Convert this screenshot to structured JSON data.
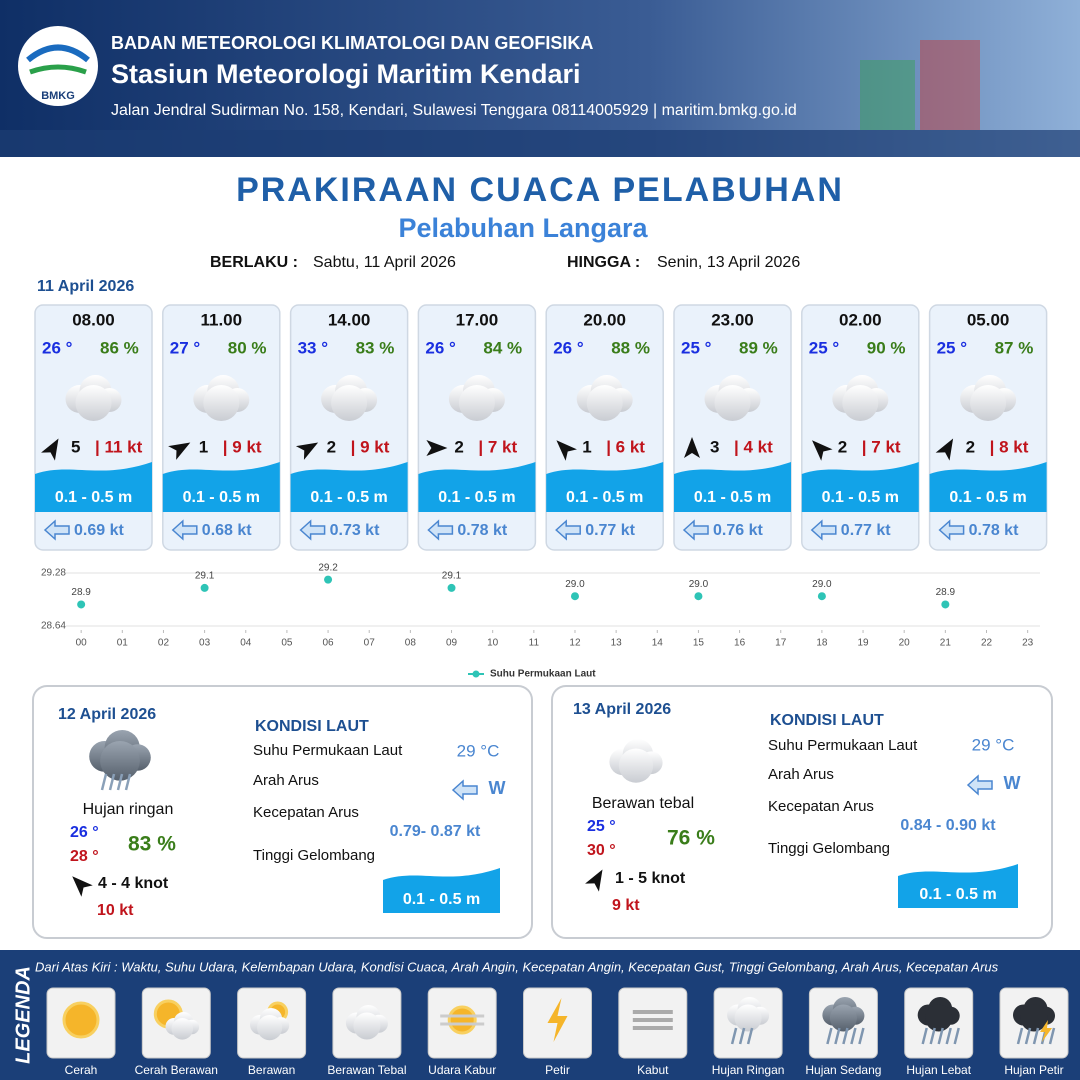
{
  "header": {
    "logo": "BMKG",
    "org": "BADAN METEOROLOGI KLIMATOLOGI DAN GEOFISIKA",
    "station": "Stasiun Meteorologi Maritim Kendari",
    "address": "Jalan Jendral Sudirman No. 158, Kendari, Sulawesi Tenggara  08114005929 | maritim.bmkg.go.id"
  },
  "title": "PRAKIRAAN CUACA PELABUHAN",
  "subtitle": "Pelabuhan Langara",
  "validity": {
    "from_label": "BERLAKU :",
    "from": "Sabtu, 11 April 2026",
    "to_label": "HINGGA :",
    "to": "Senin, 13 April 2026"
  },
  "day1": {
    "date": "11 April 2026",
    "slots": [
      {
        "time": "08.00",
        "temp": "26 °",
        "humidity": "86 %",
        "wind_angle": 30,
        "wind": "5",
        "gust": "| 11 kt",
        "wave": "0.1 - 0.5 m",
        "current": "0.69 kt"
      },
      {
        "time": "11.00",
        "temp": "27 °",
        "humidity": "80 %",
        "wind_angle": 60,
        "wind": "1",
        "gust": "| 9 kt",
        "wave": "0.1 - 0.5 m",
        "current": "0.68 kt"
      },
      {
        "time": "14.00",
        "temp": "33 °",
        "humidity": "83 %",
        "wind_angle": 60,
        "wind": "2",
        "gust": "| 9 kt",
        "wave": "0.1 - 0.5 m",
        "current": "0.73 kt"
      },
      {
        "time": "17.00",
        "temp": "26 °",
        "humidity": "84 %",
        "wind_angle": 90,
        "wind": "2",
        "gust": "| 7 kt",
        "wave": "0.1 - 0.5 m",
        "current": "0.78 kt"
      },
      {
        "time": "20.00",
        "temp": "26 °",
        "humidity": "88 %",
        "wind_angle": 315,
        "wind": "1",
        "gust": "| 6 kt",
        "wave": "0.1 - 0.5 m",
        "current": "0.77 kt"
      },
      {
        "time": "23.00",
        "temp": "25 °",
        "humidity": "89 %",
        "wind_angle": 0,
        "wind": "3",
        "gust": "| 4 kt",
        "wave": "0.1 - 0.5 m",
        "current": "0.76 kt"
      },
      {
        "time": "02.00",
        "temp": "25 °",
        "humidity": "90 %",
        "wind_angle": 315,
        "wind": "2",
        "gust": "| 7 kt",
        "wave": "0.1 - 0.5 m",
        "current": "0.77 kt"
      },
      {
        "time": "05.00",
        "temp": "25 °",
        "humidity": "87 %",
        "wind_angle": 30,
        "wind": "2",
        "gust": "| 8 kt",
        "wave": "0.1 - 0.5 m",
        "current": "0.78 kt"
      }
    ]
  },
  "chart_data": {
    "type": "scatter",
    "x": [
      0,
      3,
      6,
      9,
      12,
      15,
      18,
      21
    ],
    "series": [
      {
        "name": "Suhu Permukaan Laut",
        "color": "#2ec4b6",
        "values": [
          28.9,
          29.1,
          29.2,
          29.1,
          29.0,
          29.0,
          29.0,
          28.9
        ],
        "value_labels": [
          "28.9",
          "29.1",
          "29.2",
          "29.1",
          "29.0",
          "29.0",
          "29.0",
          "28.9"
        ]
      }
    ],
    "xlim": [
      -1,
      23.3
    ],
    "ylim": [
      28.64,
      29.28
    ],
    "yticks": [
      28.64,
      29.28
    ],
    "xticks": [
      {
        "value": 0,
        "label": "00"
      },
      {
        "value": 1,
        "label": "01"
      },
      {
        "value": 2,
        "label": "02"
      },
      {
        "value": 3,
        "label": "03"
      },
      {
        "value": 4,
        "label": "04"
      },
      {
        "value": 5,
        "label": "05"
      },
      {
        "value": 6,
        "label": "06"
      },
      {
        "value": 7,
        "label": "07"
      },
      {
        "value": 8,
        "label": "08"
      },
      {
        "value": 9,
        "label": "09"
      },
      10,
      11,
      12,
      13,
      14,
      15,
      16,
      17,
      18,
      19,
      20,
      21,
      22,
      23
    ],
    "grid": true
  },
  "days": [
    {
      "date": "12 April 2026",
      "condition": "Hujan ringan",
      "temp_min": "26 °",
      "temp_max": "28 °",
      "humidity": "83 %",
      "wind_angle": 315,
      "wind": "4  - 4 knot",
      "gust": "10 kt",
      "sea_title": "KONDISI LAUT",
      "sst_label": "Suhu Permukaan Laut",
      "sst": "29 °C",
      "dir_label": "Arah Arus",
      "dir": "W",
      "speed_label": "Kecepatan Arus",
      "speed": "0.79- 0.87 kt",
      "wave_label": "Tinggi Gelombang",
      "wave": "0.1 - 0.5 m"
    },
    {
      "date": "13 April 2026",
      "condition": "Berawan tebal",
      "temp_min": "25 °",
      "temp_max": "30 °",
      "humidity": "76 %",
      "wind_angle": 30,
      "wind": "1  - 5 knot",
      "gust": "9 kt",
      "sea_title": "KONDISI LAUT",
      "sst_label": "Suhu Permukaan Laut",
      "sst": "29 °C",
      "dir_label": "Arah Arus",
      "dir": "W",
      "speed_label": "Kecepatan Arus",
      "speed": "0.84 - 0.90 kt",
      "wave_label": "Tinggi Gelombang",
      "wave": "0.1 - 0.5 m"
    }
  ],
  "legend": {
    "title": "LEGENDA",
    "note": "Dari Atas Kiri : Waktu, Suhu Udara, Kelembapan Udara, Kondisi Cuaca, Arah Angin, Kecepatan Angin, Kecepatan Gust, Tinggi Gelombang, Arah Arus, Kecepatan Arus",
    "items": [
      "Cerah",
      "Cerah Berawan",
      "Berawan",
      "Berawan Tebal",
      "Udara Kabur",
      "Petir",
      "Kabut",
      "Hujan Ringan",
      "Hujan Sedang",
      "Hujan Lebat",
      "Hujan Petir"
    ]
  }
}
